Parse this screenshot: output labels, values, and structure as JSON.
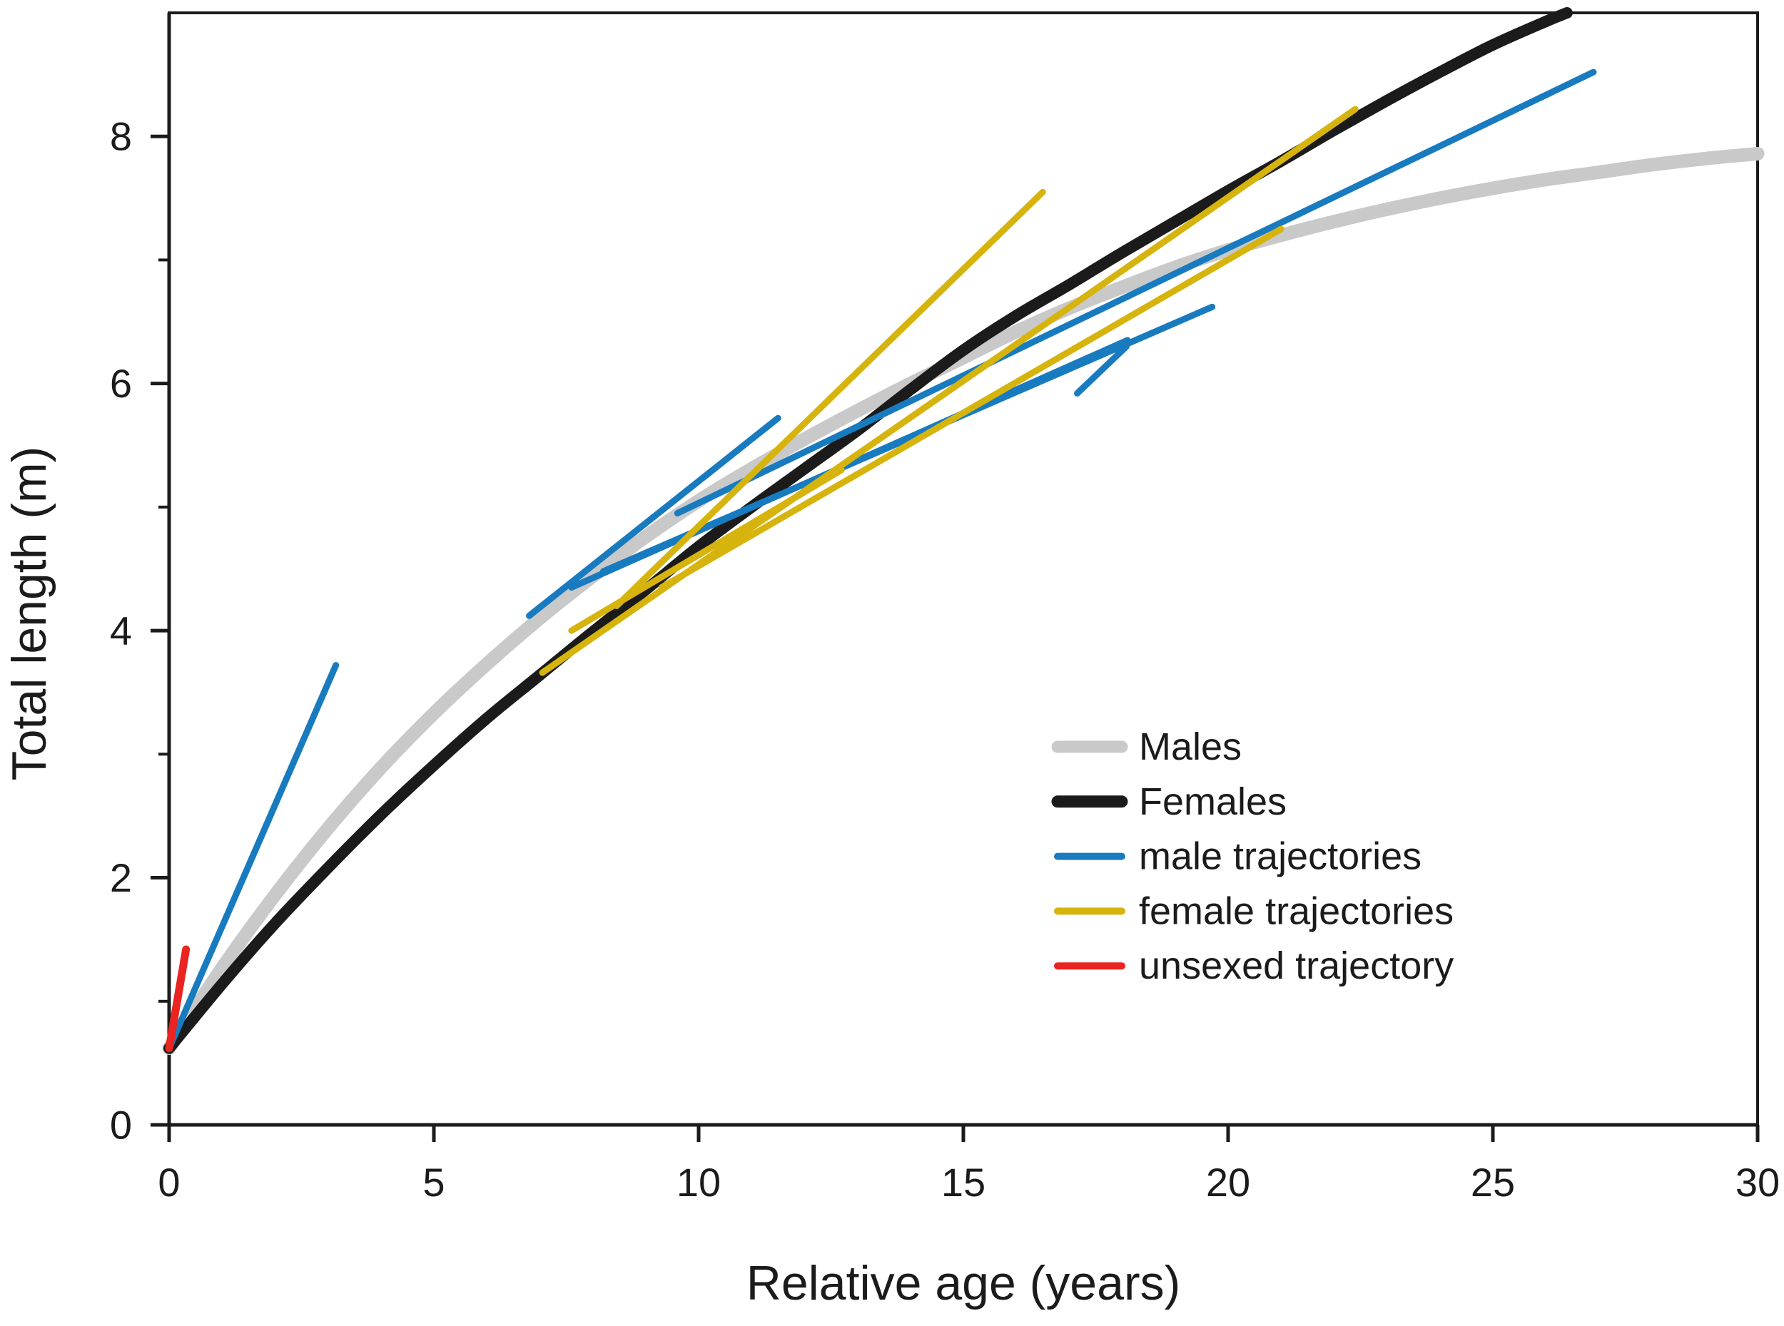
{
  "figure": {
    "background": "#ffffff",
    "axis_color": "#1b1b1b"
  },
  "chart_data": {
    "type": "line",
    "title": "",
    "xlabel": "Relative age (years)",
    "ylabel": "Total length (m)",
    "xlim": [
      0,
      30
    ],
    "ylim": [
      0,
      9
    ],
    "xticks": [
      0,
      5,
      10,
      15,
      20,
      25,
      30
    ],
    "yticks": [
      0,
      2,
      4,
      6,
      8
    ],
    "yticks_minor": [
      1,
      3,
      5,
      7
    ],
    "grid": false,
    "frame": true,
    "legend": {
      "position": "center right",
      "entries": [
        {
          "label": "Males",
          "color": "#c9c9c9",
          "weight": "thick"
        },
        {
          "label": "Females",
          "color": "#1b1b1b",
          "weight": "thick"
        },
        {
          "label": "male trajectories",
          "color": "#187bbf",
          "weight": "thin"
        },
        {
          "label": "female trajectories",
          "color": "#d6b40d",
          "weight": "thin"
        },
        {
          "label": "unsexed trajectory",
          "color": "#ea2420",
          "weight": "thin"
        }
      ]
    },
    "series": [
      {
        "name": "Males",
        "kind": "curve",
        "color": "#c9c9c9",
        "stroke_width": 19,
        "points": [
          [
            0,
            0.62
          ],
          [
            1,
            1.27
          ],
          [
            2,
            1.86
          ],
          [
            3,
            2.4
          ],
          [
            4,
            2.89
          ],
          [
            5,
            3.33
          ],
          [
            6,
            3.73
          ],
          [
            7,
            4.1
          ],
          [
            8,
            4.44
          ],
          [
            9,
            4.76
          ],
          [
            10,
            5.05
          ],
          [
            11,
            5.31
          ],
          [
            12,
            5.55
          ],
          [
            13,
            5.78
          ],
          [
            14,
            6.0
          ],
          [
            15,
            6.21
          ],
          [
            16,
            6.42
          ],
          [
            17,
            6.61
          ],
          [
            18,
            6.78
          ],
          [
            19,
            6.94
          ],
          [
            20,
            7.08
          ],
          [
            21,
            7.2
          ],
          [
            22,
            7.31
          ],
          [
            23,
            7.41
          ],
          [
            24,
            7.5
          ],
          [
            25,
            7.58
          ],
          [
            26,
            7.65
          ],
          [
            27,
            7.71
          ],
          [
            28,
            7.77
          ],
          [
            29,
            7.82
          ],
          [
            30,
            7.86
          ]
        ]
      },
      {
        "name": "Females",
        "kind": "curve",
        "color": "#1b1b1b",
        "stroke_width": 16,
        "points": [
          [
            0,
            0.62
          ],
          [
            1,
            1.14
          ],
          [
            2,
            1.63
          ],
          [
            3,
            2.08
          ],
          [
            4,
            2.51
          ],
          [
            5,
            2.91
          ],
          [
            6,
            3.29
          ],
          [
            7,
            3.64
          ],
          [
            8,
            3.99
          ],
          [
            9,
            4.33
          ],
          [
            10,
            4.68
          ],
          [
            11,
            5.0
          ],
          [
            12,
            5.31
          ],
          [
            13,
            5.62
          ],
          [
            14,
            5.95
          ],
          [
            15,
            6.27
          ],
          [
            16,
            6.55
          ],
          [
            17,
            6.8
          ],
          [
            18,
            7.06
          ],
          [
            19,
            7.31
          ],
          [
            20,
            7.56
          ],
          [
            21,
            7.8
          ],
          [
            22,
            8.05
          ],
          [
            23,
            8.29
          ],
          [
            24,
            8.52
          ],
          [
            25,
            8.74
          ],
          [
            26,
            8.93
          ],
          [
            26.4,
            9.0
          ]
        ]
      },
      {
        "name": "male trajectories",
        "kind": "segments",
        "color": "#187bbf",
        "stroke_width": 9,
        "segments": [
          [
            [
              0,
              0.62
            ],
            [
              3.15,
              3.72
            ]
          ],
          [
            [
              6.8,
              4.12
            ],
            [
              11.5,
              5.72
            ]
          ],
          [
            [
              7.6,
              4.35
            ],
            [
              18.1,
              6.35
            ]
          ],
          [
            [
              17.15,
              5.92
            ],
            [
              18.08,
              6.3
            ]
          ],
          [
            [
              8.2,
              4.48
            ],
            [
              19.7,
              6.62
            ]
          ],
          [
            [
              9.6,
              4.95
            ],
            [
              26.9,
              8.52
            ]
          ]
        ]
      },
      {
        "name": "female trajectories",
        "kind": "segments",
        "color": "#d6b40d",
        "stroke_width": 9,
        "segments": [
          [
            [
              7.05,
              3.66
            ],
            [
              22.4,
              8.22
            ]
          ],
          [
            [
              8.45,
              4.2
            ],
            [
              16.5,
              7.55
            ]
          ],
          [
            [
              9.3,
              4.35
            ],
            [
              21.0,
              7.25
            ]
          ],
          [
            [
              7.6,
              4.0
            ],
            [
              12.7,
              5.3
            ]
          ]
        ]
      },
      {
        "name": "unsexed trajectory",
        "kind": "segments",
        "color": "#ea2420",
        "stroke_width": 11,
        "segments": [
          [
            [
              0,
              0.62
            ],
            [
              0.32,
              1.42
            ]
          ]
        ]
      }
    ]
  }
}
